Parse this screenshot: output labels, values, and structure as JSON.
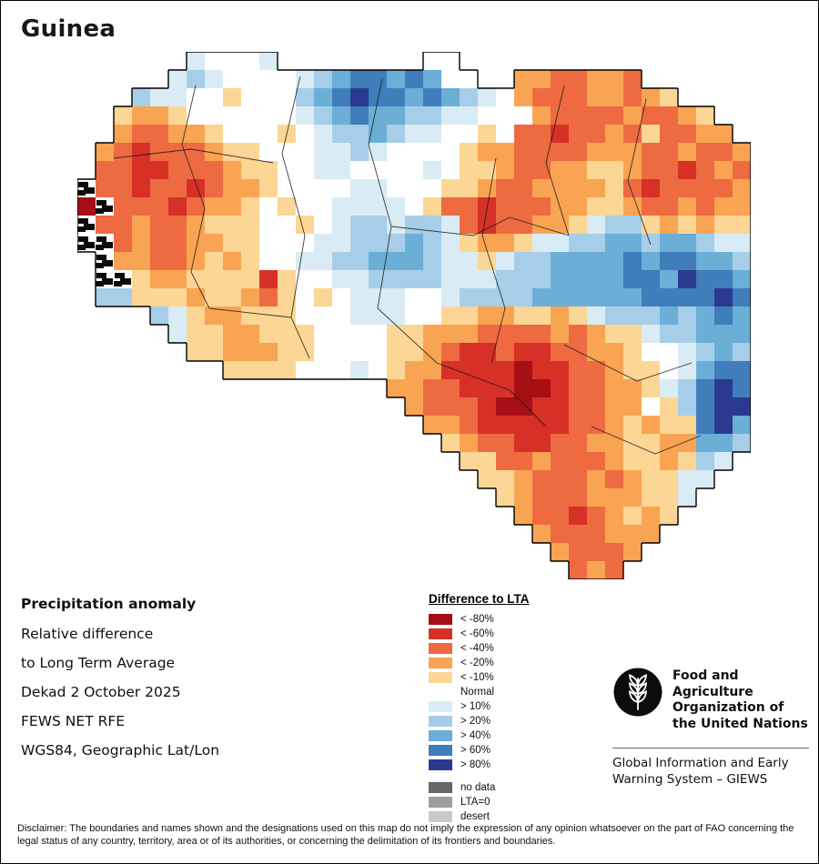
{
  "page": {
    "title": "Guinea"
  },
  "info": {
    "heading": "Precipitation anomaly",
    "lines": [
      "Relative difference",
      "to Long Term Average",
      "Dekad 2 October 2025",
      "FEWS NET RFE",
      "WGS84, Geographic Lat/Lon"
    ]
  },
  "legend": {
    "title": "Difference to LTA",
    "items": [
      {
        "label": "< -80%",
        "color": "#a50f15"
      },
      {
        "label": "< -60%",
        "color": "#d73027"
      },
      {
        "label": "< -40%",
        "color": "#ee6a41"
      },
      {
        "label": "< -20%",
        "color": "#f9a452"
      },
      {
        "label": "< -10%",
        "color": "#fcd694"
      },
      {
        "label": "Normal",
        "color": "#ffffff"
      },
      {
        "label": "> 10%",
        "color": "#d9ecf5"
      },
      {
        "label": "> 20%",
        "color": "#a6cee9"
      },
      {
        "label": "> 40%",
        "color": "#6baed6"
      },
      {
        "label": "> 60%",
        "color": "#3f7dbb"
      },
      {
        "label": "> 80%",
        "color": "#2b3a8f"
      },
      {
        "label": "no data",
        "color": "#666666",
        "gap_before": true
      },
      {
        "label": "LTA=0",
        "color": "#9d9d9d"
      },
      {
        "label": "desert",
        "color": "#c9c9c9"
      }
    ]
  },
  "fao": {
    "org_name": "Food and Agriculture Organization of the United Nations",
    "giews_name": "Global Information and Early Warning System – GIEWS"
  },
  "disclaimer": "Disclaimer: The boundaries and names shown and the designations used on this map do not imply the expression of any opinion whatsoever on the part of FAO concerning the legal status of any country, territory, area or of its authorities, or concerning the delimitation of its frontiers and boundaries.",
  "map": {
    "cell_size": 20,
    "columns": 37,
    "rows": 29,
    "palette": {
      "A": "#a50f15",
      "B": "#d73027",
      "C": "#ee6a41",
      "D": "#f9a452",
      "E": "#fcd694",
      "N": "#ffffff",
      "F": "#d9ecf5",
      "G": "#a6cee9",
      "H": "#6baed6",
      "I": "#3f7dbb",
      "J": "#2b3a8f",
      "K": "#0b0b0b"
    },
    "grid": [
      "......FNNNF........NN................",
      ".....FGFNNNNFGHIIHIHNN..DDCCDDC......",
      "...GFFNNENNNGHIJIIHIHGFNDCCCDDCDE....",
      "..EDDENNNNNNFGHIHHGGFFNNNDCCCCDCCDE..",
      "..DCCDDENNNENFGGHGFFNNENCCBCCDCECCDD.",
      ".DCBCCCDEENNNFFGFNNNNEDDCCCCDDDCCDCCD",
      ".CCBBCCCDEENNFFNNNNFNEEDCCDDEEDCCBCDC",
      "KCCBCCBCDDENNNNFFNNNEEDCCDDDDECBCCCCD",
      "AKCCCBCDDENENNFFFFNECCBCCCDDEEDCCDCDD",
      "KCCDCCDEEENNENFGGFGGFCBCCDDEFGGEDEDEE",
      "KKCDCCDDEENNNFFGGGHGFEDDEFFGGHHGHHGFF",
      ".KDDCCDEDENNFFGGHHHGFFEFGGHHHHIHIIHHG",
      ".KKEDDEEEEBENNFFGGGGFFFGGGHHHHIIHJIIH",
      ".GGEEEDEEDCENENFFFNNFGGGGHHHHHHIIIIJI",
      "....GFEDDEEENNNFFFNNEEDDEEDEFGGGHGHIH",
      ".....FEEDDEEENNNNEEDDDCCCCDCDEEFGGHHH",
      "......EEDDDEENNNNEEDCBBCBBCCDDENNFGHG",
      "........EEEENNNFNEDDBBBBABBCCDEENFHII",
      ".................DDCCBBBAABCCDDEFGIJI",
      "..................DCCCBAABBCCDDNEGIJJ",
      "...................DDCBBBBBCCDEDEEIJH",
      "....................EDCCBBCCDDEEDDHHG",
      ".....................EECCDCCCDEEDEGF.",
      "......................EEDCCCDCDEEFF..",
      ".......................EDCCCDDDEEF...",
      "........................DCCBCDEDE....",
      ".........................DCCCDDD.....",
      "..........................DCCCD......",
      "...........................CDC......."
    ],
    "admin_paths": [
      "M130 37 L115 102 L140 172 L125 242 L145 282",
      "M245 27 L225 112 L250 202 L235 292 L255 337",
      "M335 30 L320 102 L345 192 L330 282",
      "M40 117 L125 107 L215 122",
      "M345 192 L435 202 L475 182",
      "M535 37 L515 122 L540 202",
      "M625 52 L605 142 L630 212",
      "M460 117 L445 202 L470 282 L455 342",
      "M535 322 L615 362 L675 342",
      "M565 412 L635 442 L685 422",
      "M395 342 L475 372 L515 412",
      "M145 282 L235 292",
      "M475 182 L540 202",
      "M330 282 L395 342"
    ]
  }
}
